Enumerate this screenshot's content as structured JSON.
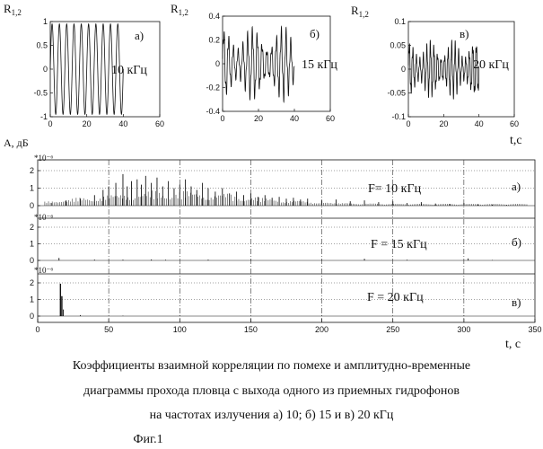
{
  "top_panels": [
    {
      "ylabel": "R",
      "ysub": "1,2",
      "letter": "а)",
      "freq": "10 кГц"
    },
    {
      "ylabel": "R",
      "ysub": "1,2",
      "letter": "б)",
      "freq": "15 кГц"
    },
    {
      "ylabel": "R",
      "ysub": "1,2",
      "letter": "в)",
      "freq": "20 кГц"
    }
  ],
  "top_xlabel": "t,c",
  "bottom_ylabel": "A, дБ",
  "bottom_xlabel": "t, c",
  "bottom_panels": [
    {
      "scale": "*10⁻⁶",
      "label": "F= 10 кГц",
      "letter": "а)"
    },
    {
      "scale": "*10⁻⁶",
      "label": "F = 15 кГц",
      "letter": "б)"
    },
    {
      "scale": "*10⁻⁶",
      "label": "F = 20 кГц",
      "letter": "в)"
    }
  ],
  "caption": {
    "line1": "Коэффициенты взаимной корреляции по помехе и амплитудно-временные",
    "line2": "диаграммы прохода пловца с выхода одного из приемных гидрофонов",
    "line3": "на частотах излучения а) 10; б) 15 и в) 20 кГц",
    "fig": "Фиг.1"
  },
  "chart_data": [
    {
      "type": "line",
      "xlim": [
        0,
        60
      ],
      "ylim": [
        -1,
        1
      ],
      "x_ticks": [
        "0",
        "20",
        "40",
        "60"
      ],
      "y_ticks": [
        "-1",
        "-0.5",
        "0",
        "0.5",
        "1"
      ],
      "signal": {
        "amplitude": 0.95,
        "cycles": 10,
        "x_end": 40
      }
    },
    {
      "type": "line",
      "xlim": [
        0,
        60
      ],
      "ylim": [
        -0.4,
        0.4
      ],
      "x_ticks": [
        "0",
        "20",
        "40",
        "60"
      ],
      "y_ticks": [
        "-0.4",
        "-0.2",
        "0",
        "0.2",
        "0.4"
      ],
      "signal": {
        "amplitude": 0.33,
        "cycles": 15,
        "x_end": 40
      }
    },
    {
      "type": "line",
      "xlim": [
        0,
        60
      ],
      "ylim": [
        -0.1,
        0.1
      ],
      "x_ticks": [
        "0",
        "20",
        "40",
        "60"
      ],
      "y_ticks": [
        "-0.1",
        "-0.05",
        "0",
        "0.05",
        "0.1"
      ],
      "signal": {
        "amplitude": 0.065,
        "cycles": 20,
        "x_end": 40
      }
    },
    {
      "type": "bar",
      "xlim": [
        0,
        350
      ],
      "x_ticks": [
        "0",
        "50",
        "100",
        "150",
        "200",
        "250",
        "300",
        "350"
      ],
      "panels": [
        {
          "ylim": [
            0,
            2
          ],
          "y_ticks": [
            "0",
            "1",
            "2"
          ],
          "spikes": [
            [
              10,
              0.15
            ],
            [
              20,
              0.3
            ],
            [
              30,
              0.4
            ],
            [
              40,
              0.6
            ],
            [
              46,
              0.9
            ],
            [
              50,
              1.1
            ],
            [
              55,
              1.3
            ],
            [
              60,
              1.8
            ],
            [
              63,
              1.1
            ],
            [
              66,
              1.4
            ],
            [
              70,
              1.5
            ],
            [
              73,
              1.2
            ],
            [
              76,
              1.7
            ],
            [
              80,
              1.3
            ],
            [
              84,
              1.6
            ],
            [
              88,
              1.1
            ],
            [
              92,
              1.4
            ],
            [
              96,
              1.0
            ],
            [
              100,
              1.2
            ],
            [
              104,
              1.5
            ],
            [
              108,
              1.1
            ],
            [
              112,
              0.9
            ],
            [
              116,
              1.3
            ],
            [
              120,
              1.0
            ],
            [
              125,
              0.8
            ],
            [
              130,
              1.0
            ],
            [
              135,
              0.7
            ],
            [
              140,
              0.8
            ],
            [
              145,
              0.6
            ],
            [
              150,
              0.7
            ],
            [
              155,
              0.5
            ],
            [
              160,
              0.6
            ],
            [
              165,
              0.45
            ],
            [
              170,
              0.5
            ],
            [
              175,
              0.4
            ],
            [
              180,
              0.45
            ],
            [
              185,
              0.35
            ],
            [
              190,
              0.4
            ],
            [
              200,
              0.3
            ],
            [
              210,
              0.35
            ],
            [
              220,
              0.25
            ],
            [
              230,
              0.3
            ],
            [
              240,
              0.2
            ],
            [
              250,
              0.25
            ],
            [
              260,
              0.15
            ],
            [
              270,
              0.2
            ],
            [
              280,
              0.12
            ],
            [
              290,
              0.1
            ],
            [
              300,
              0.15
            ],
            [
              310,
              0.08
            ],
            [
              320,
              0.06
            ],
            [
              330,
              0.05
            ]
          ]
        },
        {
          "ylim": [
            0,
            2
          ],
          "y_ticks": [
            "0",
            "1",
            "2"
          ],
          "spikes": [
            [
              15,
              0.15
            ],
            [
              40,
              0.05
            ],
            [
              60,
              0.05
            ],
            [
              80,
              0.06
            ],
            [
              90,
              0.04
            ],
            [
              120,
              0.05
            ],
            [
              150,
              0.04
            ],
            [
              200,
              0.03
            ],
            [
              230,
              0.1
            ],
            [
              260,
              0.04
            ],
            [
              303,
              0.12
            ],
            [
              320,
              0.03
            ]
          ]
        },
        {
          "ylim": [
            0,
            2
          ],
          "y_ticks": [
            "0",
            "1",
            "2"
          ],
          "spikes": [
            [
              16,
              1.95
            ],
            [
              17,
              1.2
            ],
            [
              18,
              0.4
            ],
            [
              30,
              0.06
            ],
            [
              60,
              0.03
            ],
            [
              100,
              0.03
            ],
            [
              200,
              0.03
            ],
            [
              300,
              0.03
            ]
          ]
        }
      ]
    }
  ]
}
